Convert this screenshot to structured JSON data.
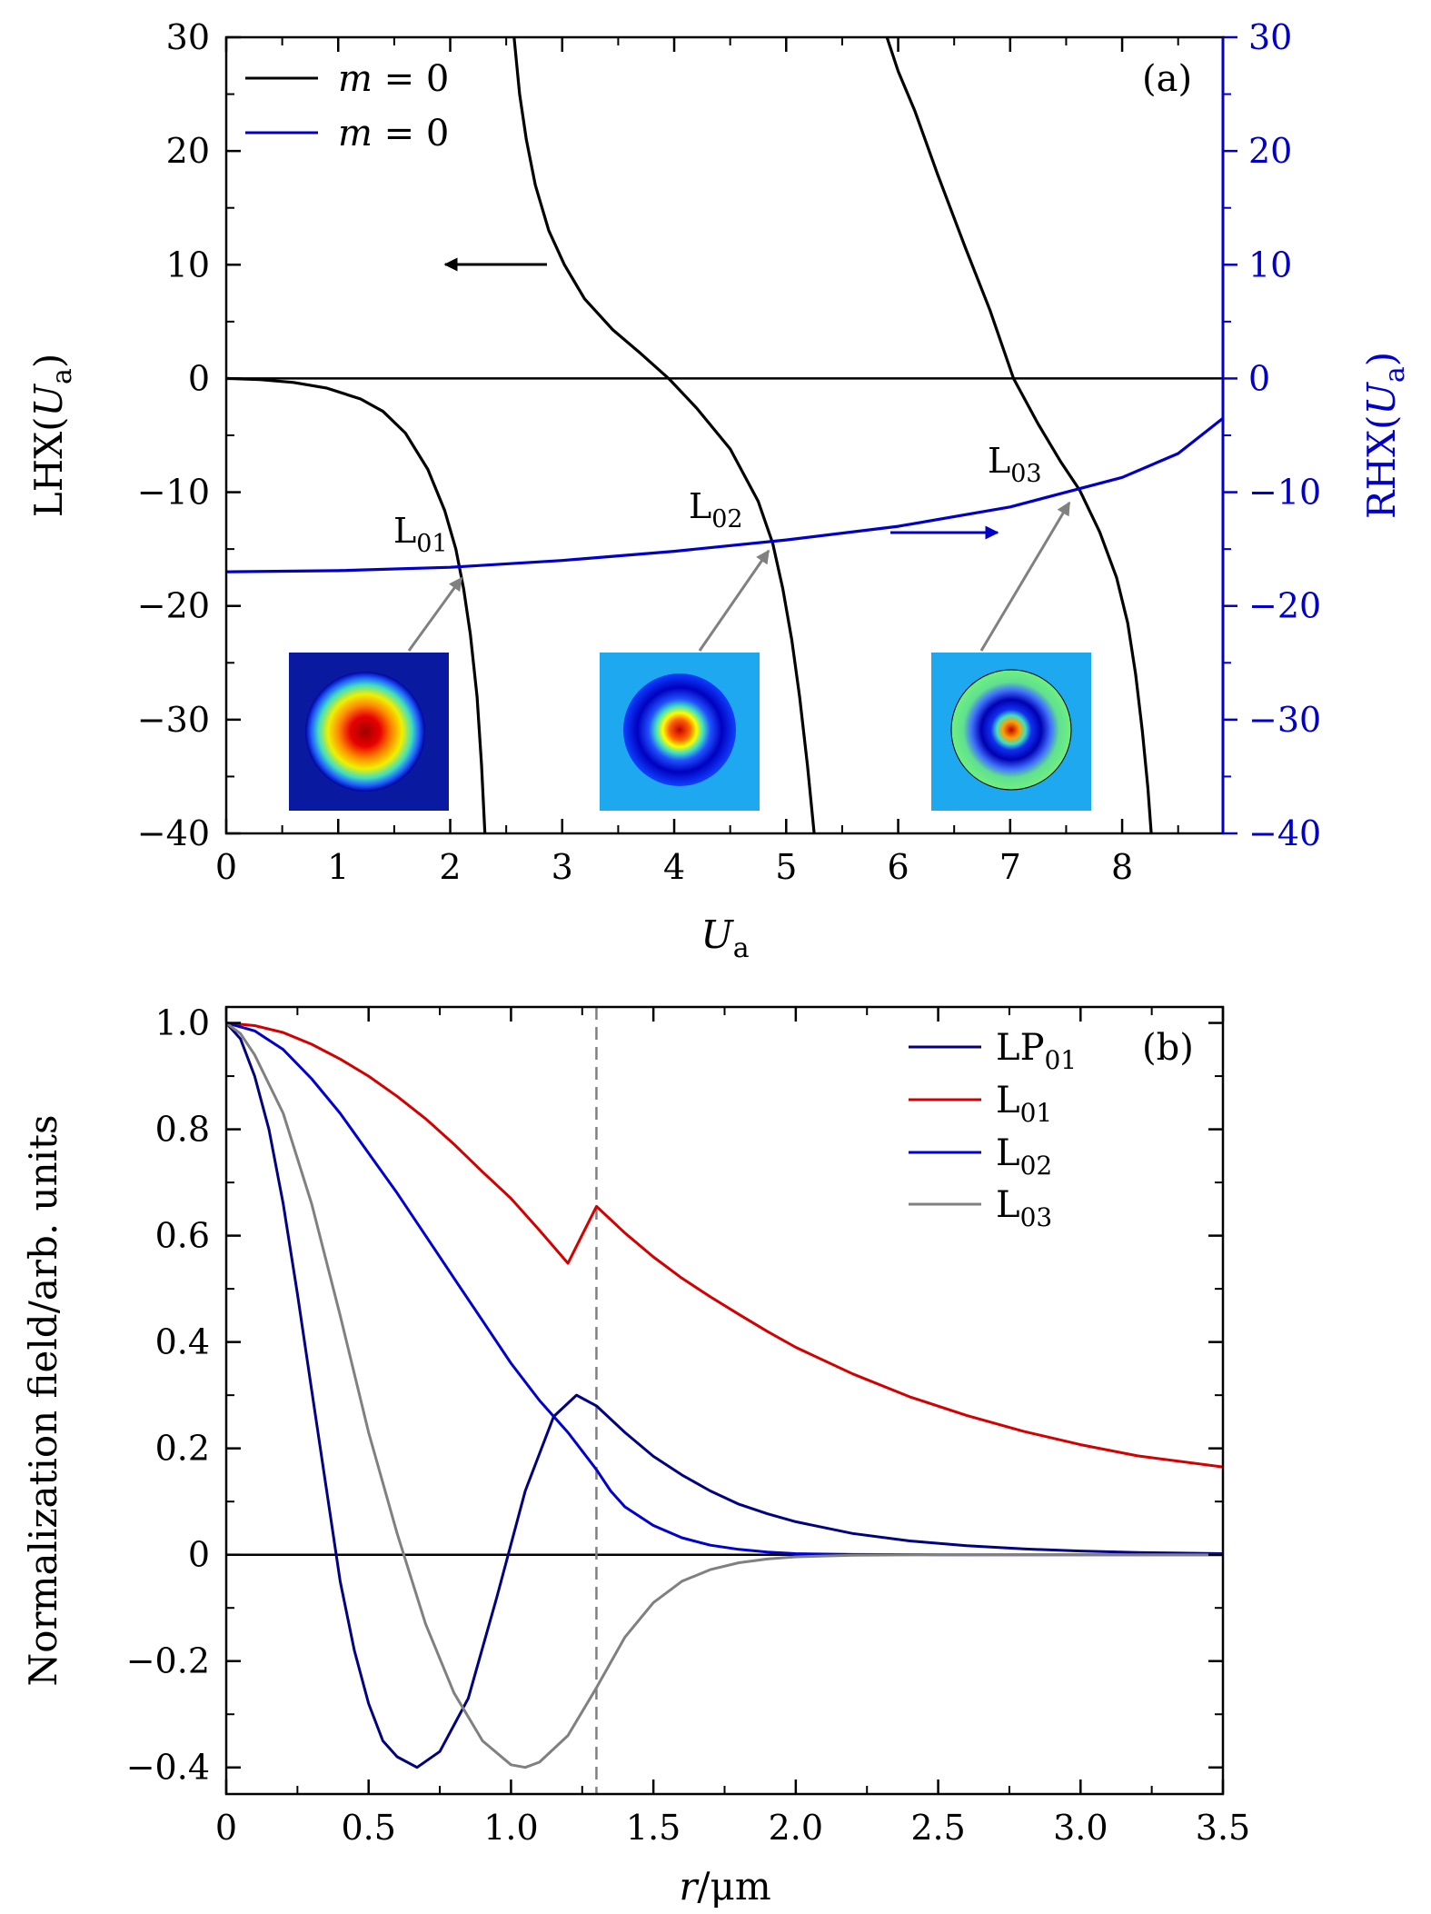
{
  "chart_data": [
    {
      "id": "a",
      "type": "line",
      "panel_label": "(a)",
      "xlabel": "U",
      "xlabel_sub": "a",
      "ylabel_left": {
        "pre": "LHX(",
        "var": "U",
        "sub": "a",
        "post": ")"
      },
      "ylabel_right": {
        "pre": "RHX(",
        "var": "U",
        "sub": "a",
        "post": ")"
      },
      "xlim": [
        0,
        8.9
      ],
      "ylim": [
        -40,
        30
      ],
      "xticks": [
        0,
        1,
        2,
        3,
        4,
        5,
        6,
        7,
        8
      ],
      "yticks": [
        30,
        20,
        10,
        0,
        -10,
        -20,
        -30,
        -40
      ],
      "ytick_labels": [
        "30",
        "20",
        "10",
        "0",
        "−10",
        "−20",
        "−30",
        "−40"
      ],
      "legend": [
        {
          "var": "m",
          "rest": " = 0",
          "color": "#000000"
        },
        {
          "var": "m",
          "rest": " = 0",
          "color": "#0000c8"
        }
      ],
      "series": [
        {
          "name": "LHX branch 1",
          "axis": "left",
          "color": "#000000",
          "points": [
            [
              0,
              0
            ],
            [
              0.3,
              -0.1
            ],
            [
              0.6,
              -0.35
            ],
            [
              0.9,
              -0.85
            ],
            [
              1.2,
              -1.8
            ],
            [
              1.4,
              -2.9
            ],
            [
              1.6,
              -4.8
            ],
            [
              1.8,
              -8.0
            ],
            [
              1.95,
              -11.6
            ],
            [
              2.05,
              -15.0
            ],
            [
              2.12,
              -18.5
            ],
            [
              2.18,
              -22.5
            ],
            [
              2.24,
              -28
            ],
            [
              2.28,
              -34
            ],
            [
              2.31,
              -40
            ]
          ]
        },
        {
          "name": "LHX branch 2",
          "axis": "left",
          "color": "#000000",
          "points": [
            [
              2.57,
              30
            ],
            [
              2.62,
              25
            ],
            [
              2.68,
              21
            ],
            [
              2.76,
              17
            ],
            [
              2.88,
              13
            ],
            [
              3.02,
              10
            ],
            [
              3.2,
              7
            ],
            [
              3.45,
              4.3
            ],
            [
              3.7,
              2.2
            ],
            [
              3.95,
              0
            ],
            [
              4.2,
              -2.6
            ],
            [
              4.5,
              -6.2
            ],
            [
              4.75,
              -10.8
            ],
            [
              4.88,
              -14.5
            ],
            [
              4.97,
              -18.5
            ],
            [
              5.05,
              -23
            ],
            [
              5.12,
              -28
            ],
            [
              5.19,
              -34
            ],
            [
              5.25,
              -40
            ]
          ]
        },
        {
          "name": "LHX branch 3",
          "axis": "left",
          "color": "#000000",
          "points": [
            [
              5.9,
              30
            ],
            [
              6.0,
              27
            ],
            [
              6.15,
              23.5
            ],
            [
              6.35,
              18
            ],
            [
              6.6,
              11.5
            ],
            [
              6.82,
              6
            ],
            [
              7.03,
              0
            ],
            [
              7.25,
              -4
            ],
            [
              7.45,
              -7.3
            ],
            [
              7.62,
              -9.8
            ],
            [
              7.8,
              -13.5
            ],
            [
              7.95,
              -17.5
            ],
            [
              8.05,
              -21.5
            ],
            [
              8.12,
              -26
            ],
            [
              8.18,
              -31
            ],
            [
              8.23,
              -36
            ],
            [
              8.26,
              -40
            ]
          ]
        },
        {
          "name": "RHX",
          "axis": "right",
          "color": "#0000c8",
          "points": [
            [
              0,
              -17.0
            ],
            [
              1,
              -16.9
            ],
            [
              2,
              -16.6
            ],
            [
              3,
              -16.0
            ],
            [
              4,
              -15.2
            ],
            [
              5,
              -14.2
            ],
            [
              6,
              -13.0
            ],
            [
              7,
              -11.3
            ],
            [
              8,
              -8.7
            ],
            [
              8.5,
              -6.6
            ],
            [
              8.9,
              -3.5
            ]
          ]
        }
      ],
      "reference_lines": [
        {
          "y": 0,
          "color": "#000000"
        }
      ],
      "mode_labels": [
        {
          "base": "L",
          "sub": "01",
          "x": 2.13,
          "y": -16.8
        },
        {
          "base": "L",
          "sub": "02",
          "x": 4.87,
          "y": -15.0
        },
        {
          "base": "L",
          "sub": "03",
          "x": 7.62,
          "y": -10.0
        }
      ],
      "axis_arrows": [
        {
          "direction": "left",
          "points_to": "LHX axis",
          "color": "#000000"
        },
        {
          "direction": "right",
          "points_to": "RHX axis",
          "color": "#0000c8"
        }
      ],
      "insets": [
        {
          "mode": "L01",
          "rings": 0
        },
        {
          "mode": "L02",
          "rings": 1
        },
        {
          "mode": "L03",
          "rings": 2
        }
      ]
    },
    {
      "id": "b",
      "type": "line",
      "panel_label": "(b)",
      "xlabel": {
        "var": "r",
        "unit": "/μm"
      },
      "ylabel": "Normalization field/arb. units",
      "xlim": [
        0,
        3.5
      ],
      "ylim": [
        -0.45,
        1.03
      ],
      "xticks": [
        0,
        0.5,
        1.0,
        1.5,
        2.0,
        2.5,
        3.0,
        3.5
      ],
      "xtick_labels": [
        "0",
        "0.5",
        "1.0",
        "1.5",
        "2.0",
        "2.5",
        "3.0",
        "3.5"
      ],
      "yticks": [
        1.0,
        0.8,
        0.6,
        0.4,
        0.2,
        0,
        -0.2,
        -0.4
      ],
      "ytick_labels": [
        "1.0",
        "0.8",
        "0.6",
        "0.4",
        "0.2",
        "0",
        "−0.2",
        "−0.4"
      ],
      "legend": [
        {
          "base": "LP",
          "sub": "01",
          "color": "#000080"
        },
        {
          "base": "L",
          "sub": "01",
          "color": "#d40000"
        },
        {
          "base": "L",
          "sub": "02",
          "color": "#0000d0"
        },
        {
          "base": "L",
          "sub": "03",
          "color": "#808080"
        }
      ],
      "series": [
        {
          "name": "LP01",
          "color": "#000080",
          "points": [
            [
              0,
              1.0
            ],
            [
              0.05,
              0.97
            ],
            [
              0.1,
              0.9
            ],
            [
              0.15,
              0.8
            ],
            [
              0.2,
              0.66
            ],
            [
              0.25,
              0.49
            ],
            [
              0.3,
              0.31
            ],
            [
              0.35,
              0.13
            ],
            [
              0.4,
              -0.05
            ],
            [
              0.45,
              -0.18
            ],
            [
              0.5,
              -0.28
            ],
            [
              0.55,
              -0.35
            ],
            [
              0.6,
              -0.38
            ],
            [
              0.67,
              -0.4
            ],
            [
              0.75,
              -0.37
            ],
            [
              0.85,
              -0.27
            ],
            [
              0.95,
              -0.08
            ],
            [
              1.05,
              0.12
            ],
            [
              1.15,
              0.26
            ],
            [
              1.23,
              0.3
            ],
            [
              1.3,
              0.28
            ],
            [
              1.4,
              0.23
            ],
            [
              1.5,
              0.185
            ],
            [
              1.6,
              0.15
            ],
            [
              1.7,
              0.12
            ],
            [
              1.8,
              0.095
            ],
            [
              1.9,
              0.077
            ],
            [
              2.0,
              0.062
            ],
            [
              2.2,
              0.04
            ],
            [
              2.4,
              0.026
            ],
            [
              2.6,
              0.017
            ],
            [
              2.8,
              0.011
            ],
            [
              3.0,
              0.007
            ],
            [
              3.2,
              0.004
            ],
            [
              3.5,
              0.002
            ]
          ]
        },
        {
          "name": "L01",
          "color": "#d40000",
          "points": [
            [
              0,
              1.0
            ],
            [
              0.1,
              0.995
            ],
            [
              0.2,
              0.982
            ],
            [
              0.3,
              0.96
            ],
            [
              0.4,
              0.932
            ],
            [
              0.5,
              0.9
            ],
            [
              0.6,
              0.862
            ],
            [
              0.7,
              0.82
            ],
            [
              0.8,
              0.772
            ],
            [
              0.9,
              0.72
            ],
            [
              1.0,
              0.67
            ],
            [
              1.1,
              0.61
            ],
            [
              1.2,
              0.548
            ],
            [
              1.3,
              0.655
            ],
            [
              1.4,
              0.605
            ],
            [
              1.5,
              0.56
            ],
            [
              1.6,
              0.52
            ],
            [
              1.7,
              0.485
            ],
            [
              1.8,
              0.452
            ],
            [
              1.9,
              0.42
            ],
            [
              2.0,
              0.39
            ],
            [
              2.2,
              0.34
            ],
            [
              2.4,
              0.297
            ],
            [
              2.6,
              0.262
            ],
            [
              2.8,
              0.232
            ],
            [
              3.0,
              0.207
            ],
            [
              3.2,
              0.186
            ],
            [
              3.5,
              0.165
            ]
          ]
        },
        {
          "name": "L02",
          "color": "#0000d0",
          "points": [
            [
              0,
              1.0
            ],
            [
              0.1,
              0.985
            ],
            [
              0.2,
              0.95
            ],
            [
              0.3,
              0.895
            ],
            [
              0.4,
              0.83
            ],
            [
              0.5,
              0.755
            ],
            [
              0.6,
              0.68
            ],
            [
              0.7,
              0.6
            ],
            [
              0.8,
              0.52
            ],
            [
              0.9,
              0.44
            ],
            [
              1.0,
              0.36
            ],
            [
              1.1,
              0.29
            ],
            [
              1.2,
              0.23
            ],
            [
              1.3,
              0.16
            ],
            [
              1.35,
              0.12
            ],
            [
              1.4,
              0.09
            ],
            [
              1.5,
              0.055
            ],
            [
              1.6,
              0.032
            ],
            [
              1.7,
              0.018
            ],
            [
              1.8,
              0.01
            ],
            [
              1.9,
              0.005
            ],
            [
              2.0,
              0.002
            ],
            [
              2.2,
              0.0005
            ],
            [
              2.5,
              0
            ],
            [
              3.5,
              0
            ]
          ]
        },
        {
          "name": "L03",
          "color": "#808080",
          "points": [
            [
              0,
              1.0
            ],
            [
              0.05,
              0.98
            ],
            [
              0.1,
              0.94
            ],
            [
              0.2,
              0.83
            ],
            [
              0.3,
              0.66
            ],
            [
              0.4,
              0.45
            ],
            [
              0.5,
              0.23
            ],
            [
              0.6,
              0.04
            ],
            [
              0.7,
              -0.13
            ],
            [
              0.8,
              -0.26
            ],
            [
              0.9,
              -0.35
            ],
            [
              1.0,
              -0.395
            ],
            [
              1.05,
              -0.4
            ],
            [
              1.1,
              -0.39
            ],
            [
              1.2,
              -0.34
            ],
            [
              1.3,
              -0.25
            ],
            [
              1.4,
              -0.155
            ],
            [
              1.5,
              -0.09
            ],
            [
              1.6,
              -0.05
            ],
            [
              1.7,
              -0.028
            ],
            [
              1.8,
              -0.015
            ],
            [
              1.9,
              -0.008
            ],
            [
              2.0,
              -0.004
            ],
            [
              2.2,
              -0.001
            ],
            [
              2.5,
              0
            ],
            [
              3.5,
              0
            ]
          ]
        }
      ],
      "reference_lines": [
        {
          "y": 0,
          "color": "#000000",
          "style": "solid"
        },
        {
          "x": 1.3,
          "color": "#808080",
          "style": "dashed"
        }
      ]
    }
  ]
}
